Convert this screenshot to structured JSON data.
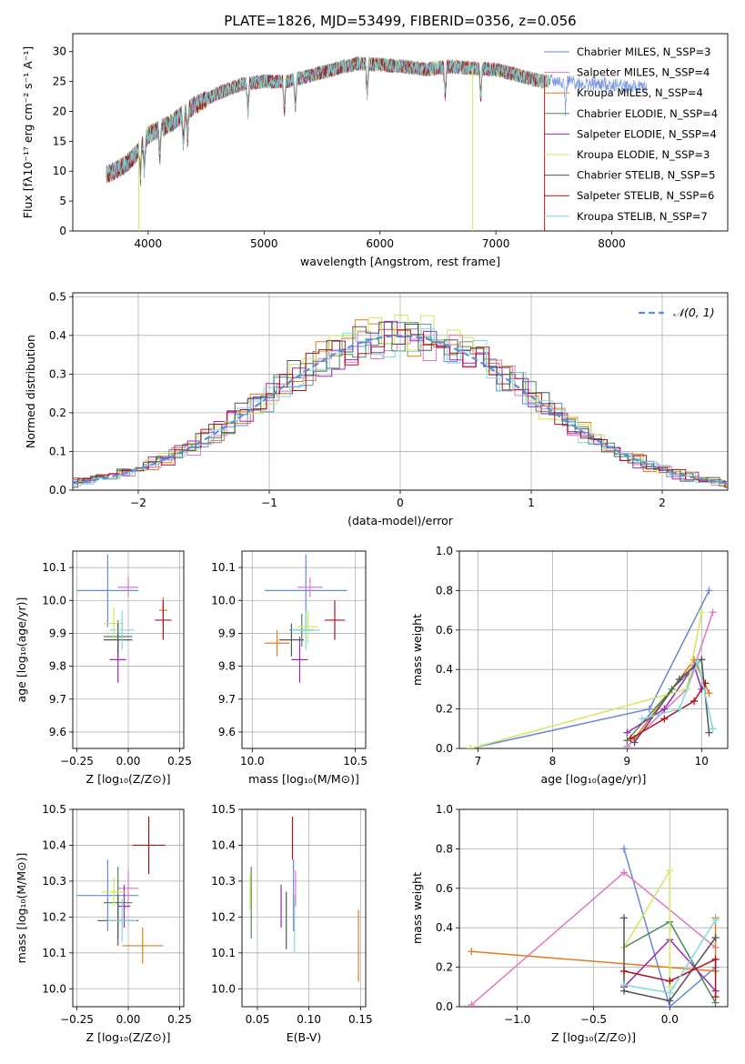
{
  "figure": {
    "title": "PLATE=1826, MJD=53499, FIBERID=0356, z=0.056"
  },
  "colors": {
    "series": [
      "#6688dd",
      "#e377c2",
      "#e07b20",
      "#4a8a55",
      "#9a28b8",
      "#cfe85a",
      "#555555",
      "#b0111a",
      "#80d8e0"
    ],
    "gauss": "#5b8ee0"
  },
  "chart_data": [
    {
      "id": "spectrum",
      "type": "line",
      "xlabel": "wavelength [Angstrom, rest frame]",
      "ylabel": "Flux [fλ10⁻¹⁷ erg cm⁻² s⁻¹ A⁻¹]",
      "xlim": [
        3350,
        9000
      ],
      "ylim": [
        0,
        33
      ],
      "xticks": [
        4000,
        5000,
        6000,
        7000,
        8000
      ],
      "yticks": [
        0,
        5,
        10,
        15,
        20,
        25,
        30
      ],
      "legend_position": "top-right",
      "continuum": {
        "x": [
          3600,
          3700,
          3800,
          3900,
          4000,
          4100,
          4200,
          4300,
          4400,
          4600,
          4800,
          5000,
          5200,
          5400,
          5600,
          5800,
          6000,
          6200,
          6400,
          6600,
          6800,
          7000,
          7200,
          7400,
          7600,
          7800,
          8000,
          8200,
          8400
        ],
        "y": [
          9,
          10,
          11,
          13,
          16,
          17,
          18,
          19.5,
          21,
          23,
          24.5,
          25,
          25,
          26,
          27,
          28,
          27.8,
          27.5,
          27,
          27.5,
          27.2,
          27,
          26,
          25,
          25,
          24.5,
          24.5,
          24,
          24
        ]
      },
      "series": [
        {
          "name": "Chabrier MILES, N_SSP=3"
        },
        {
          "name": "Salpeter MILES, N_SSP=4"
        },
        {
          "name": "Kroupa MILES, N_SSP=4"
        },
        {
          "name": "Chabrier ELODIE, N_SSP=4"
        },
        {
          "name": "Salpeter ELODIE, N_SSP=4"
        },
        {
          "name": "Kroupa ELODIE, N_SSP=3"
        },
        {
          "name": "Chabrier STELIB, N_SSP=5"
        },
        {
          "name": "Salpeter STELIB, N_SSP=6"
        },
        {
          "name": "Kroupa STELIB, N_SSP=7"
        }
      ]
    },
    {
      "id": "residuals",
      "type": "bar",
      "xlabel": "(data-model)/error",
      "ylabel": "Normed distribution",
      "xlim": [
        -2.5,
        2.5
      ],
      "ylim": [
        0,
        0.51
      ],
      "xticks": [
        -2,
        -1,
        0,
        1,
        2
      ],
      "yticks": [
        0.0,
        0.1,
        0.2,
        0.3,
        0.4,
        0.5
      ],
      "grid": true,
      "legend_position": "top-right",
      "gauss_label": "𝒩(0, 1)",
      "bin_width": 0.1
    },
    {
      "id": "age_vs_Z",
      "type": "scatter",
      "xlabel": "Z [log₁₀(Z/Z⊙)]",
      "ylabel": "age  [log₁₀(age/yr)]",
      "xlim": [
        -0.27,
        0.27
      ],
      "ylim": [
        9.55,
        10.15
      ],
      "xticks": [
        -0.25,
        0.0,
        0.25
      ],
      "xticklabels": [
        "−0.25",
        "0.00",
        "0.25"
      ],
      "yticks": [
        9.6,
        9.7,
        9.8,
        9.9,
        10.0,
        10.1
      ],
      "grid": true,
      "points": [
        {
          "x": -0.1,
          "y": 10.03,
          "xerr": 0.15,
          "yerr": 0.11
        },
        {
          "x": 0.0,
          "y": 10.04,
          "xerr": 0.05,
          "yerr": 0.03
        },
        {
          "x": 0.17,
          "y": 9.97,
          "xerr": 0.02,
          "yerr": 0.04
        },
        {
          "x": -0.05,
          "y": 9.89,
          "xerr": 0.07,
          "yerr": 0.05
        },
        {
          "x": -0.05,
          "y": 9.82,
          "xerr": 0.04,
          "yerr": 0.07
        },
        {
          "x": -0.07,
          "y": 9.93,
          "xerr": 0.05,
          "yerr": 0.05
        },
        {
          "x": -0.05,
          "y": 9.88,
          "xerr": 0.07,
          "yerr": 0.05
        },
        {
          "x": 0.17,
          "y": 9.94,
          "xerr": 0.04,
          "yerr": 0.06
        },
        {
          "x": -0.03,
          "y": 9.91,
          "xerr": 0.06,
          "yerr": 0.06
        }
      ]
    },
    {
      "id": "age_vs_mass",
      "type": "scatter",
      "xlabel": "mass [log₁₀(M/M⊙)]",
      "xlim": [
        9.95,
        10.55
      ],
      "ylim": [
        9.55,
        10.15
      ],
      "xticks": [
        10.0,
        10.5
      ],
      "xticklabels": [
        "10.0",
        "10.5"
      ],
      "yticks": [
        9.6,
        9.7,
        9.8,
        9.9,
        10.0,
        10.1
      ],
      "grid": true,
      "points": [
        {
          "x": 10.26,
          "y": 10.03,
          "xerr": 0.2,
          "yerr": 0.11
        },
        {
          "x": 10.28,
          "y": 10.04,
          "xerr": 0.06,
          "yerr": 0.03
        },
        {
          "x": 10.12,
          "y": 9.87,
          "xerr": 0.06,
          "yerr": 0.04
        },
        {
          "x": 10.24,
          "y": 9.91,
          "xerr": 0.06,
          "yerr": 0.05
        },
        {
          "x": 10.23,
          "y": 9.82,
          "xerr": 0.04,
          "yerr": 0.07
        },
        {
          "x": 10.27,
          "y": 9.92,
          "xerr": 0.05,
          "yerr": 0.05
        },
        {
          "x": 10.19,
          "y": 9.88,
          "xerr": 0.06,
          "yerr": 0.05
        },
        {
          "x": 10.4,
          "y": 9.94,
          "xerr": 0.05,
          "yerr": 0.06
        },
        {
          "x": 10.26,
          "y": 9.91,
          "xerr": 0.07,
          "yerr": 0.06
        }
      ]
    },
    {
      "id": "weight_vs_age",
      "type": "line",
      "xlabel": "age  [log₁₀(age/yr)]",
      "ylabel": "mass weight",
      "xlim": [
        6.75,
        10.35
      ],
      "ylim": [
        0,
        1.0
      ],
      "xticks": [
        7,
        8,
        9,
        10
      ],
      "yticks": [
        0.0,
        0.2,
        0.4,
        0.6,
        0.8,
        1.0
      ],
      "grid": true,
      "series": [
        {
          "x": [
            6.9,
            9.3,
            10.1
          ],
          "values": [
            0.0,
            0.2,
            0.8
          ]
        },
        {
          "x": [
            9.0,
            9.8,
            10.15
          ],
          "values": [
            0.01,
            0.3,
            0.69
          ]
        },
        {
          "x": [
            9.1,
            9.9,
            10.1
          ],
          "values": [
            0.05,
            0.45,
            0.28
          ]
        },
        {
          "x": [
            9.0,
            9.6,
            10.0
          ],
          "values": [
            0.04,
            0.3,
            0.45
          ]
        },
        {
          "x": [
            9.0,
            9.5,
            9.9,
            10.0
          ],
          "values": [
            0.08,
            0.2,
            0.42,
            0.3
          ]
        },
        {
          "x": [
            6.9,
            9.8,
            10.0
          ],
          "values": [
            0.0,
            0.3,
            0.69
          ]
        },
        {
          "x": [
            9.1,
            9.7,
            10.0,
            10.1
          ],
          "values": [
            0.03,
            0.35,
            0.45,
            0.08
          ]
        },
        {
          "x": [
            9.05,
            9.5,
            9.9,
            10.05
          ],
          "values": [
            0.05,
            0.15,
            0.24,
            0.33
          ]
        },
        {
          "x": [
            9.2,
            9.7,
            9.95,
            10.15
          ],
          "values": [
            0.15,
            0.2,
            0.44,
            0.1
          ]
        }
      ]
    },
    {
      "id": "mass_vs_Z",
      "type": "scatter",
      "xlabel": "Z [log₁₀(Z/Z⊙)]",
      "ylabel": "mass [log₁₀(M/M⊙)]",
      "xlim": [
        -0.27,
        0.27
      ],
      "ylim": [
        9.95,
        10.5
      ],
      "xticks": [
        -0.25,
        0.0,
        0.25
      ],
      "xticklabels": [
        "−0.25",
        "0.00",
        "0.25"
      ],
      "yticks": [
        10.0,
        10.1,
        10.2,
        10.3,
        10.4,
        10.5
      ],
      "grid": true,
      "points": [
        {
          "x": -0.1,
          "y": 10.26,
          "xerr": 0.15,
          "yerr": 0.1
        },
        {
          "x": 0.0,
          "y": 10.28,
          "xerr": 0.05,
          "yerr": 0.05
        },
        {
          "x": 0.07,
          "y": 10.12,
          "xerr": 0.1,
          "yerr": 0.05
        },
        {
          "x": -0.05,
          "y": 10.24,
          "xerr": 0.07,
          "yerr": 0.1
        },
        {
          "x": -0.02,
          "y": 10.23,
          "xerr": 0.03,
          "yerr": 0.06
        },
        {
          "x": -0.07,
          "y": 10.27,
          "xerr": 0.06,
          "yerr": 0.04
        },
        {
          "x": -0.05,
          "y": 10.19,
          "xerr": 0.1,
          "yerr": 0.07
        },
        {
          "x": 0.1,
          "y": 10.4,
          "xerr": 0.08,
          "yerr": 0.08
        },
        {
          "x": -0.03,
          "y": 10.19,
          "xerr": 0.07,
          "yerr": 0.06
        }
      ]
    },
    {
      "id": "mass_vs_ebv",
      "type": "scatter",
      "xlabel": "E(B-V)",
      "xlim": [
        0.035,
        0.155
      ],
      "ylim": [
        9.95,
        10.5
      ],
      "xticks": [
        0.05,
        0.1,
        0.15
      ],
      "xticklabels": [
        "0.05",
        "0.10",
        "0.15"
      ],
      "yticks": [
        10.0,
        10.1,
        10.2,
        10.3,
        10.4,
        10.5
      ],
      "grid": true,
      "points": [
        {
          "x": 0.085,
          "y": 10.26,
          "xerr": 0.0,
          "yerr": 0.1
        },
        {
          "x": 0.087,
          "y": 10.28,
          "xerr": 0.0,
          "yerr": 0.05
        },
        {
          "x": 0.148,
          "y": 10.12,
          "xerr": 0.0,
          "yerr": 0.1
        },
        {
          "x": 0.044,
          "y": 10.24,
          "xerr": 0.0,
          "yerr": 0.1
        },
        {
          "x": 0.073,
          "y": 10.23,
          "xerr": 0.0,
          "yerr": 0.06
        },
        {
          "x": 0.043,
          "y": 10.27,
          "xerr": 0.0,
          "yerr": 0.05
        },
        {
          "x": 0.078,
          "y": 10.19,
          "xerr": 0.0,
          "yerr": 0.08
        },
        {
          "x": 0.084,
          "y": 10.42,
          "xerr": 0.0,
          "yerr": 0.06
        },
        {
          "x": 0.086,
          "y": 10.18,
          "xerr": 0.0,
          "yerr": 0.08
        }
      ]
    },
    {
      "id": "weight_vs_Z",
      "type": "line",
      "xlabel": "Z [log₁₀(Z/Z⊙)]",
      "ylabel": "mass weight",
      "xlim": [
        -1.38,
        0.38
      ],
      "ylim": [
        0,
        1.0
      ],
      "xticks": [
        -1.0,
        -0.5,
        0.0
      ],
      "xticklabels": [
        "−1.0",
        "−0.5",
        "0.0"
      ],
      "yticks": [
        0.0,
        0.2,
        0.4,
        0.6,
        0.8,
        1.0
      ],
      "grid": true,
      "series": [
        {
          "x": [
            -0.3,
            0.0,
            0.3
          ],
          "values": [
            0.8,
            0.0,
            0.2
          ]
        },
        {
          "x": [
            -1.3,
            -0.3,
            0.3
          ],
          "values": [
            0.01,
            0.68,
            0.3
          ]
        },
        {
          "x": [
            -1.3,
            0.3,
            0.3
          ],
          "values": [
            0.28,
            0.18,
            0.45
          ]
        },
        {
          "x": [
            -0.3,
            0.0,
            0.3
          ],
          "values": [
            0.3,
            0.43,
            0.02
          ]
        },
        {
          "x": [
            -0.3,
            0.0,
            0.3
          ],
          "values": [
            0.1,
            0.34,
            0.08
          ]
        },
        {
          "x": [
            -0.3,
            0.0,
            0.0
          ],
          "values": [
            0.3,
            0.69,
            0.1
          ]
        },
        {
          "x": [
            -0.3,
            -0.3,
            0.0,
            0.3
          ],
          "values": [
            0.45,
            0.08,
            0.03,
            0.35
          ]
        },
        {
          "x": [
            -0.3,
            0.0,
            0.3,
            0.3
          ],
          "values": [
            0.18,
            0.13,
            0.24,
            0.05
          ]
        },
        {
          "x": [
            -0.3,
            0.0,
            0.3
          ],
          "values": [
            0.11,
            0.07,
            0.44
          ]
        }
      ]
    }
  ]
}
